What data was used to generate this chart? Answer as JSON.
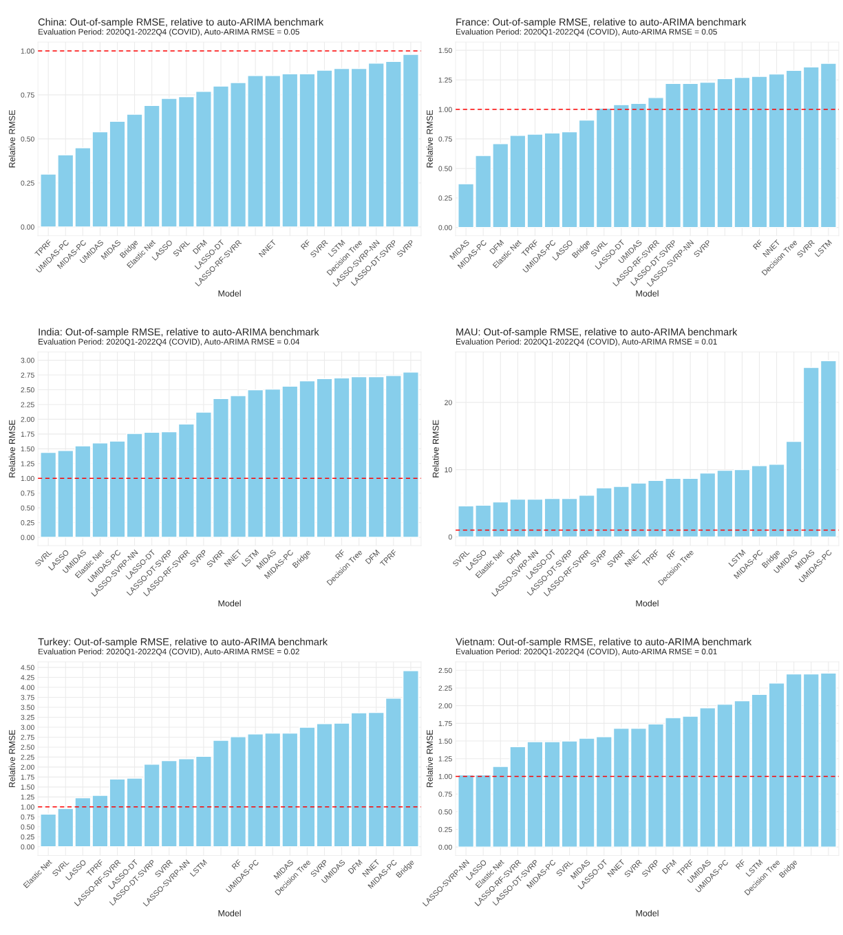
{
  "chart_data": [
    {
      "type": "bar",
      "title": "China: Out-of-sample RMSE, relative to auto-ARIMA benchmark",
      "subtitle": "Evaluation Period: 2020Q1-2022Q4 (COVID), Auto-ARIMA RMSE = 0.05",
      "xlabel": "Model",
      "ylabel": "Relative RMSE",
      "color": "#87ceeb",
      "grid": true,
      "categories": [
        "TPRF",
        "UMIDAS-PC",
        "MIDAS-PC",
        "UMIDAS",
        "MIDAS",
        "Bridge",
        "Elastic Net",
        "LASSO",
        "SVRL",
        "DFM",
        "LASSO-DT",
        "LASSO-RF-SVRR",
        null,
        "NNET",
        null,
        "RF",
        "SVRR",
        "LSTM",
        "Decision Tree",
        "LASSO-SVRP-NN",
        "LASSO-DT-SVRP",
        "SVRP"
      ],
      "values": [
        0.3,
        0.41,
        0.45,
        0.54,
        0.6,
        0.64,
        0.69,
        0.73,
        0.74,
        0.77,
        0.8,
        0.82,
        0.86,
        0.86,
        0.87,
        0.87,
        0.89,
        0.9,
        0.9,
        0.93,
        0.94,
        0.98
      ],
      "ylim": [
        -0.05,
        1.05
      ],
      "yticks": [
        {
          "value": 0,
          "label": "0.00"
        },
        {
          "value": 0.25,
          "label": "0.25"
        },
        {
          "value": 0.5,
          "label": "0.50"
        },
        {
          "value": 0.75,
          "label": "0.75"
        },
        {
          "value": 1,
          "label": "1.00"
        }
      ],
      "ref_lines": [
        {
          "axis": "y",
          "value": 1,
          "color": "#ff0000",
          "line_style": "dashed"
        }
      ]
    },
    {
      "type": "bar",
      "title": "France: Out-of-sample RMSE, relative to auto-ARIMA benchmark",
      "subtitle": "Evaluation Period: 2020Q1-2022Q4 (COVID), Auto-ARIMA RMSE = 0.05",
      "xlabel": "Model",
      "ylabel": "Relative RMSE",
      "color": "#87ceeb",
      "grid": true,
      "categories": [
        "MIDAS",
        "MIDAS-PC",
        "DFM",
        "Elastic Net",
        "TPRF",
        "UMIDAS-PC",
        "LASSO",
        "Bridge",
        "SVRL",
        "LASSO-DT",
        "UMIDAS",
        "LASSO-RF-SVRR",
        "LASSO-DT-SVRP",
        "LASSO-SVRP-NN",
        "SVRP",
        null,
        null,
        "RF",
        "NNET",
        "Decision Tree",
        "SVRR",
        "LSTM"
      ],
      "values": [
        0.37,
        0.61,
        0.71,
        0.78,
        0.79,
        0.8,
        0.81,
        0.91,
        1.01,
        1.04,
        1.05,
        1.1,
        1.22,
        1.22,
        1.23,
        1.26,
        1.27,
        1.28,
        1.3,
        1.33,
        1.36,
        1.39
      ],
      "ylim": [
        -0.07,
        1.57
      ],
      "yticks": [
        {
          "value": 0,
          "label": "0.00"
        },
        {
          "value": 0.25,
          "label": "0.25"
        },
        {
          "value": 0.5,
          "label": "0.50"
        },
        {
          "value": 0.75,
          "label": "0.75"
        },
        {
          "value": 1,
          "label": "1.00"
        },
        {
          "value": 1.25,
          "label": "1.25"
        },
        {
          "value": 1.5,
          "label": "1.50"
        }
      ],
      "ref_lines": [
        {
          "axis": "y",
          "value": 1,
          "color": "#ff0000",
          "line_style": "dashed"
        }
      ]
    },
    {
      "type": "bar",
      "title": "India: Out-of-sample RMSE, relative to auto-ARIMA benchmark",
      "subtitle": "Evaluation Period: 2020Q1-2022Q4 (COVID), Auto-ARIMA RMSE = 0.04",
      "xlabel": "Model",
      "ylabel": "Relative RMSE",
      "color": "#87ceeb",
      "grid": true,
      "categories": [
        "SVRL",
        "LASSO",
        "UMIDAS",
        "Elastic Net",
        "UMIDAS-PC",
        "LASSO-SVRP-NN",
        "LASSO-DT",
        "LASSO-DT-SVRP",
        "LASSO-RF-SVRR",
        "SVRP",
        "SVRR",
        "NNET",
        "LSTM",
        "MIDAS",
        "MIDAS-PC",
        "Bridge",
        null,
        "RF",
        "Decision Tree",
        "DFM",
        "TPRF",
        null
      ],
      "values": [
        1.44,
        1.47,
        1.55,
        1.6,
        1.63,
        1.76,
        1.78,
        1.79,
        1.92,
        2.12,
        2.35,
        2.4,
        2.5,
        2.51,
        2.56,
        2.65,
        2.69,
        2.7,
        2.72,
        2.72,
        2.74,
        2.8
      ],
      "ylim": [
        -0.14,
        3.14
      ],
      "yticks": [
        {
          "value": 0,
          "label": "0.00"
        },
        {
          "value": 0.25,
          "label": "0.25"
        },
        {
          "value": 0.5,
          "label": "0.50"
        },
        {
          "value": 0.75,
          "label": "0.75"
        },
        {
          "value": 1,
          "label": "1.00"
        },
        {
          "value": 1.25,
          "label": "1.25"
        },
        {
          "value": 1.5,
          "label": "1.50"
        },
        {
          "value": 1.75,
          "label": "1.75"
        },
        {
          "value": 2,
          "label": "2.00"
        },
        {
          "value": 2.25,
          "label": "2.25"
        },
        {
          "value": 2.5,
          "label": "2.50"
        },
        {
          "value": 2.75,
          "label": "2.75"
        },
        {
          "value": 3,
          "label": "3.00"
        }
      ],
      "ref_lines": [
        {
          "axis": "y",
          "value": 1,
          "color": "#ff0000",
          "line_style": "dashed"
        }
      ]
    },
    {
      "type": "bar",
      "title": "MAU: Out-of-sample RMSE, relative to auto-ARIMA benchmark",
      "subtitle": "Evaluation Period: 2020Q1-2022Q4 (COVID), Auto-ARIMA RMSE = 0.01",
      "xlabel": "Model",
      "ylabel": "Relative RMSE",
      "color": "#87ceeb",
      "grid": true,
      "categories": [
        "SVRL",
        "LASSO",
        "Elastic Net",
        "DFM",
        "LASSO-SVRP-NN",
        "LASSO-DT",
        "LASSO-DT-SVRP",
        "LASSO-RF-SVRR",
        "SVRP",
        "SVRR",
        "NNET",
        "TPRF",
        "RF",
        "Decision Tree",
        null,
        null,
        "LSTM",
        "MIDAS-PC",
        "Bridge",
        "UMIDAS",
        "MIDAS",
        "UMIDAS-PC"
      ],
      "values": [
        4.6,
        4.7,
        5.2,
        5.6,
        5.6,
        5.7,
        5.7,
        6.2,
        7.3,
        7.5,
        8.0,
        8.4,
        8.7,
        8.7,
        9.5,
        9.9,
        10.0,
        10.6,
        10.8,
        14.2,
        25.2,
        26.2
      ],
      "ylim": [
        -1.3,
        27.5
      ],
      "yticks": [
        0,
        10,
        20
      ],
      "ref_lines": [
        {
          "axis": "y",
          "value": 1,
          "color": "#ff0000",
          "line_style": "dashed"
        }
      ]
    },
    {
      "type": "bar",
      "title": "Turkey: Out-of-sample RMSE, relative to auto-ARIMA benchmark",
      "subtitle": "Evaluation Period: 2020Q1-2022Q4 (COVID), Auto-ARIMA RMSE = 0.02",
      "xlabel": "Model",
      "ylabel": "Relative RMSE",
      "color": "#87ceeb",
      "grid": true,
      "categories": [
        "Elastic Net",
        "SVRL",
        "LASSO",
        "TPRF",
        "LASSO-RF-SVRR",
        "LASSO-DT",
        "LASSO-DT-SVRP",
        "SVRR",
        "LASSO-SVRP-NN",
        "LSTM",
        null,
        "RF",
        "UMIDAS-PC",
        null,
        "MIDAS",
        "Decision Tree",
        "SVRP",
        "UMIDAS",
        "DFM",
        "NNET",
        "MIDAS-PC",
        "Bridge"
      ],
      "values": [
        0.82,
        0.96,
        1.23,
        1.29,
        1.7,
        1.72,
        2.07,
        2.16,
        2.21,
        2.27,
        2.67,
        2.76,
        2.83,
        2.85,
        2.85,
        3.0,
        3.09,
        3.1,
        3.36,
        3.37,
        3.73,
        4.42
      ],
      "ylim": [
        -0.22,
        4.64
      ],
      "yticks": [
        {
          "value": 0,
          "label": "0.00"
        },
        {
          "value": 0.25,
          "label": "0.25"
        },
        {
          "value": 0.5,
          "label": "0.50"
        },
        {
          "value": 0.75,
          "label": "0.75"
        },
        {
          "value": 1,
          "label": "1.00"
        },
        {
          "value": 1.25,
          "label": "1.25"
        },
        {
          "value": 1.5,
          "label": "1.50"
        },
        {
          "value": 1.75,
          "label": "1.75"
        },
        {
          "value": 2,
          "label": "2.00"
        },
        {
          "value": 2.25,
          "label": "2.25"
        },
        {
          "value": 2.5,
          "label": "2.50"
        },
        {
          "value": 2.75,
          "label": "2.75"
        },
        {
          "value": 3,
          "label": "3.00"
        },
        {
          "value": 3.25,
          "label": "3.25"
        },
        {
          "value": 3.5,
          "label": "3.50"
        },
        {
          "value": 3.75,
          "label": "3.75"
        },
        {
          "value": 4,
          "label": "4.00"
        },
        {
          "value": 4.25,
          "label": "4.25"
        },
        {
          "value": 4.5,
          "label": "4.50"
        }
      ],
      "ref_lines": [
        {
          "axis": "y",
          "value": 1,
          "color": "#ff0000",
          "line_style": "dashed"
        }
      ]
    },
    {
      "type": "bar",
      "title": "Vietnam: Out-of-sample RMSE, relative to auto-ARIMA benchmark",
      "subtitle": "Evaluation Period: 2020Q1-2022Q4 (COVID), Auto-ARIMA RMSE = 0.01",
      "xlabel": "Model",
      "ylabel": "Relative RMSE",
      "color": "#87ceeb",
      "grid": true,
      "categories": [
        "LASSO-SVRP-NN",
        "LASSO",
        "Elastic Net",
        "LASSO-RF-SVRR",
        "LASSO-DT-SVRP",
        "MIDAS-PC",
        "SVRL",
        "MIDAS",
        "LASSO-DT",
        "NNET",
        "SVRR",
        "SVRP",
        "DFM",
        "TPRF",
        "UMIDAS",
        "UMIDAS-PC",
        "RF",
        "LSTM",
        "Decision Tree",
        "Bridge",
        null,
        null
      ],
      "values": [
        1.02,
        1.02,
        1.14,
        1.42,
        1.49,
        1.49,
        1.5,
        1.54,
        1.56,
        1.68,
        1.68,
        1.74,
        1.83,
        1.85,
        1.97,
        2.02,
        2.07,
        2.16,
        2.32,
        2.45,
        2.45,
        2.46
      ],
      "ylim": [
        -0.12,
        2.62
      ],
      "yticks": [
        {
          "value": 0,
          "label": "0.00"
        },
        {
          "value": 0.25,
          "label": "0.25"
        },
        {
          "value": 0.5,
          "label": "0.50"
        },
        {
          "value": 0.75,
          "label": "0.75"
        },
        {
          "value": 1,
          "label": "1.00"
        },
        {
          "value": 1.25,
          "label": "1.25"
        },
        {
          "value": 1.5,
          "label": "1.50"
        },
        {
          "value": 1.75,
          "label": "1.75"
        },
        {
          "value": 2,
          "label": "2.00"
        },
        {
          "value": 2.25,
          "label": "2.25"
        },
        {
          "value": 2.5,
          "label": "2.50"
        }
      ],
      "ref_lines": [
        {
          "axis": "y",
          "value": 1,
          "color": "#ff0000",
          "line_style": "dashed"
        }
      ]
    }
  ]
}
